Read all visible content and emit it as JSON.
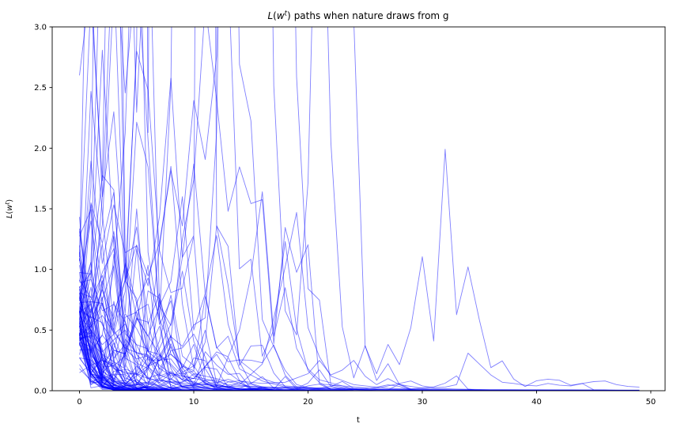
{
  "figure": {
    "bg_color": "#ffffff"
  },
  "title": {
    "plain": "L(w^t) paths when nature draws from g",
    "func": "L",
    "paren_open": "(",
    "var": "w",
    "sup": "t",
    "paren_close": ")",
    "rest": "paths when nature draws from g"
  },
  "axes": {
    "xlabel": "t",
    "ylabel_plain": "L(w^t)",
    "ylabel_func": "L",
    "ylabel_paren_open": "(",
    "ylabel_var": "w",
    "ylabel_sup": "t",
    "ylabel_paren_close": ")",
    "xtick_values": [
      0,
      10,
      20,
      30,
      40,
      50
    ],
    "xtick_labels": [
      "0",
      "10",
      "20",
      "30",
      "40",
      "50"
    ],
    "ytick_values": [
      0,
      0.5,
      1,
      1.5,
      2,
      2.5,
      3
    ],
    "ytick_labels": [
      "0.0",
      "0.5",
      "1.0",
      "1.5",
      "2.0",
      "2.5",
      "3.0"
    ],
    "spine_color": "#000000",
    "tick_color": "#000000",
    "label_color": "#000000"
  },
  "chart_data": {
    "type": "line",
    "title": "L(w^t) paths when nature draws from g",
    "xlabel": "t",
    "ylabel": "L(w^t)",
    "xlim": [
      -2.39,
      51.25
    ],
    "ylim": [
      0,
      3
    ],
    "x_range": [
      0,
      49
    ],
    "n_paths": 100,
    "grid": false,
    "legend": null,
    "line_color": "#0000ff",
    "line_alpha": 0.5,
    "line_width": 0.9,
    "description": "Ensemble of 100 likelihood-ratio paths L(w^t); nearly all decay toward 0 as t grows, with early transient spikes above 3.0 and isolated later spikes.",
    "notable_peaks": [
      {
        "t": 10,
        "L": 1.87
      },
      {
        "t": 9,
        "L": 1.6
      },
      {
        "t": 16,
        "L": 1.64
      },
      {
        "t": 19,
        "L": 1.47
      },
      {
        "t": 12,
        "L": 1.28
      },
      {
        "t": 21,
        "L": 0.25
      },
      {
        "t": 24,
        "L": 0.25
      },
      {
        "t": 34,
        "L": 0.31
      },
      {
        "t": 46,
        "L": 0.08
      }
    ],
    "landmark_paths": [
      {
        "anchors": [
          [
            0,
            0.75
          ],
          [
            1,
            0.5
          ],
          [
            2,
            0.32
          ],
          [
            3,
            0.42
          ],
          [
            4,
            0.5
          ],
          [
            5,
            0.3
          ],
          [
            6,
            0.2
          ],
          [
            7,
            0.35
          ],
          [
            8,
            0.55
          ],
          [
            9,
            1.1
          ],
          [
            10,
            1.87
          ],
          [
            11,
            0.8
          ],
          [
            12,
            0.35
          ],
          [
            13,
            0.45
          ],
          [
            14,
            0.18
          ],
          [
            16,
            0.08
          ],
          [
            18,
            0.03
          ],
          [
            22,
            0.012
          ],
          [
            30,
            0.005
          ],
          [
            49,
            0.003
          ]
        ]
      },
      {
        "anchors": [
          [
            0,
            0.55
          ],
          [
            1,
            0.75
          ],
          [
            2,
            0.95
          ],
          [
            3,
            0.5
          ],
          [
            4,
            0.35
          ],
          [
            5,
            0.6
          ],
          [
            6,
            0.45
          ],
          [
            7,
            0.3
          ],
          [
            8,
            0.22
          ],
          [
            9,
            0.12
          ],
          [
            10,
            0.1
          ],
          [
            11,
            0.2
          ],
          [
            12,
            0.32
          ],
          [
            13,
            0.28
          ],
          [
            14,
            0.5
          ],
          [
            15,
            0.95
          ],
          [
            16,
            1.64
          ],
          [
            17,
            0.45
          ],
          [
            18,
            0.85
          ],
          [
            19,
            0.35
          ],
          [
            20,
            0.18
          ],
          [
            21,
            0.09
          ],
          [
            23,
            0.04
          ],
          [
            26,
            0.015
          ],
          [
            32,
            0.006
          ],
          [
            49,
            0.004
          ]
        ]
      },
      {
        "anchors": [
          [
            0,
            0.62
          ],
          [
            2,
            0.38
          ],
          [
            4,
            0.55
          ],
          [
            6,
            0.2
          ],
          [
            8,
            0.3
          ],
          [
            10,
            0.14
          ],
          [
            12,
            0.1
          ],
          [
            14,
            0.05
          ],
          [
            16,
            0.22
          ],
          [
            17,
            0.6
          ],
          [
            18,
            1.02
          ],
          [
            19,
            1.47
          ],
          [
            20,
            0.52
          ],
          [
            21,
            0.28
          ],
          [
            22,
            0.12
          ],
          [
            24,
            0.05
          ],
          [
            27,
            0.02
          ],
          [
            33,
            0.007
          ],
          [
            49,
            0.004
          ]
        ]
      },
      {
        "anchors": [
          [
            0,
            0.5
          ],
          [
            2,
            0.3
          ],
          [
            4,
            0.18
          ],
          [
            6,
            0.1
          ],
          [
            8,
            0.07
          ],
          [
            12,
            0.04
          ],
          [
            16,
            0.03
          ],
          [
            20,
            0.025
          ],
          [
            24,
            0.02
          ],
          [
            26,
            0.02
          ],
          [
            28,
            0.06
          ],
          [
            29,
            0.08
          ],
          [
            30,
            0.04
          ],
          [
            31,
            0.025
          ],
          [
            32,
            0.03
          ],
          [
            33,
            0.05
          ],
          [
            34,
            0.31
          ],
          [
            35,
            0.22
          ],
          [
            36,
            0.13
          ],
          [
            37,
            0.07
          ],
          [
            38,
            0.06
          ],
          [
            39,
            0.045
          ],
          [
            40,
            0.04
          ],
          [
            41,
            0.06
          ],
          [
            42,
            0.045
          ],
          [
            43,
            0.04
          ],
          [
            44,
            0.06
          ],
          [
            45,
            0.075
          ],
          [
            46,
            0.08
          ],
          [
            47,
            0.05
          ],
          [
            48,
            0.035
          ],
          [
            49,
            0.03
          ]
        ]
      },
      {
        "anchors": [
          [
            0,
            0.45
          ],
          [
            2,
            0.62
          ],
          [
            4,
            0.35
          ],
          [
            6,
            0.28
          ],
          [
            8,
            0.14
          ],
          [
            10,
            0.1
          ],
          [
            12,
            0.3
          ],
          [
            13,
            0.15
          ],
          [
            14,
            0.08
          ],
          [
            16,
            0.06
          ],
          [
            18,
            0.07
          ],
          [
            20,
            0.14
          ],
          [
            21,
            0.25
          ],
          [
            22,
            0.13
          ],
          [
            23,
            0.17
          ],
          [
            24,
            0.25
          ],
          [
            25,
            0.12
          ],
          [
            26,
            0.05
          ],
          [
            27,
            0.1
          ],
          [
            28,
            0.05
          ],
          [
            30,
            0.02
          ],
          [
            36,
            0.008
          ],
          [
            49,
            0.005
          ]
        ]
      },
      {
        "anchors": [
          [
            0,
            0.9
          ],
          [
            1,
            1.4
          ],
          [
            2,
            0.7
          ],
          [
            3,
            0.5
          ],
          [
            4,
            1.05
          ],
          [
            5,
            0.6
          ],
          [
            6,
            0.45
          ],
          [
            7,
            0.7
          ],
          [
            8,
            0.9
          ],
          [
            9,
            1.6
          ],
          [
            10,
            0.5
          ],
          [
            11,
            0.8
          ],
          [
            12,
            1.28
          ],
          [
            13,
            0.55
          ],
          [
            14,
            0.25
          ],
          [
            16,
            0.1
          ],
          [
            18,
            0.04
          ],
          [
            22,
            0.015
          ],
          [
            30,
            0.006
          ],
          [
            49,
            0.004
          ]
        ]
      },
      {
        "anchors": [
          [
            0,
            2.6
          ],
          [
            1,
            3.4
          ],
          [
            2,
            1.6
          ],
          [
            3,
            2.3
          ],
          [
            4,
            0.9
          ],
          [
            5,
            1.35
          ],
          [
            6,
            0.55
          ],
          [
            7,
            0.8
          ],
          [
            8,
            0.3
          ],
          [
            10,
            0.12
          ],
          [
            13,
            0.05
          ],
          [
            18,
            0.02
          ],
          [
            25,
            0.008
          ],
          [
            49,
            0.003
          ]
        ]
      }
    ],
    "background_paths_spec": {
      "n_paths": 93,
      "seed": 20,
      "log_start_mean": -0.45,
      "log_start_sd": 0.45,
      "log_step_mean": -0.55,
      "log_step_sd": 1.0
    }
  }
}
